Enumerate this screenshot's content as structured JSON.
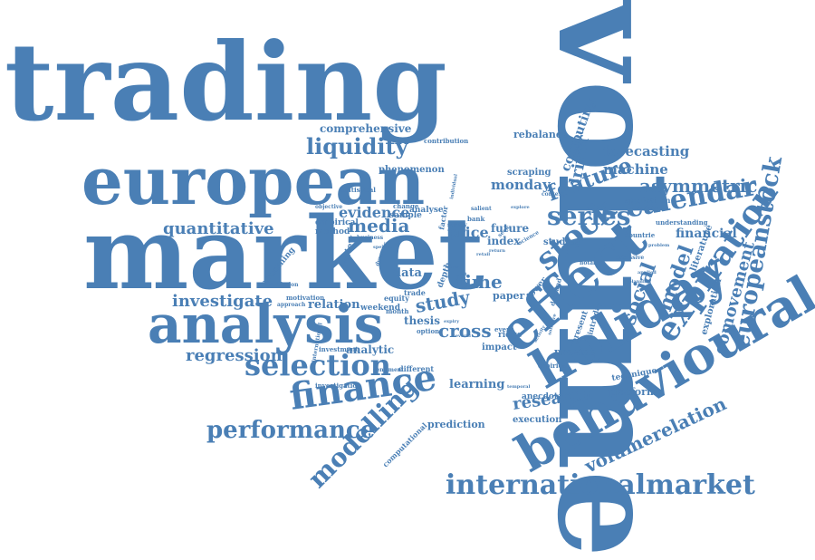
{
  "colors": {
    "word": "#4a7fb5",
    "background": "#ffffff"
  },
  "words": {
    "volume": "volume",
    "trading": "trading",
    "market": "market",
    "european": "european",
    "analysis": "analysis",
    "holiday": "holiday",
    "behavioural": "behavioural",
    "effect": "effect",
    "finance": "finance",
    "selection": "selection",
    "internationalmarket": "internationalmarket",
    "performance": "performance",
    "modelling": "modelling",
    "expiration": "expiration",
    "calendar": "calendar",
    "stock": "stock",
    "series": "series",
    "feature": "feature",
    "europeanstock": "europeanstock",
    "comovement": "comovement",
    "volumerelation": "volumerelation",
    "model": "model",
    "social": "social",
    "asymmetric": "asymmetric",
    "liquidity": "liquidity",
    "quantitative": "quantitative",
    "investigate": "investigate",
    "regression": "regression",
    "research": "research",
    "media": "media",
    "evidence": "evidence",
    "cross": "cross",
    "study": "study",
    "time": "time",
    "price": "price",
    "monday": "monday",
    "forecasting": "forecasting",
    "machine": "machine",
    "financial": "financial",
    "comprehensive": "comprehensive",
    "rebalance": "rebalance",
    "computing": "computing",
    "driver": "driver",
    "relation": "relation",
    "analytic": "analytic",
    "learning": "learning",
    "prediction": "prediction",
    "execution": "execution",
    "platform": "platform",
    "technique": "technique",
    "provide": "provide",
    "literature": "literature",
    "exploration": "exploration",
    "phenomenon": "phenomenon",
    "scraping": "scraping",
    "index": "index",
    "future": "future",
    "data": "data",
    "thesis": "thesis",
    "paper": "paper",
    "ridge": "ridge",
    "impact": "impact",
    "review": "review",
    "method": "method",
    "empirical": "empirical",
    "anecdotal": "anecdotal",
    "studies": "studies",
    "understanding": "understanding",
    "application": "application",
    "examining": "examining",
    "investment": "investment",
    "computational": "computational",
    "investigation": "investigation",
    "weekend": "weekend",
    "equity": "equity",
    "trade": "trade",
    "different": "different",
    "expiries": "expiries",
    "present": "present",
    "intraday": "intraday",
    "lower": "lower",
    "sample": "sample",
    "analyse": "analyse",
    "change": "change",
    "statistical": "statistical",
    "objective": "objective",
    "motivation": "motivation",
    "validation": "validation",
    "approach": "approach",
    "international": "international",
    "sentiment": "sentiment",
    "option": "option",
    "month": "month",
    "event": "event",
    "bank": "bank",
    "contribution": "contribution",
    "context": "context",
    "countrie": "countrie",
    "demand": "demand",
    "notable": "notable",
    "excessive": "excessive",
    "business": "business",
    "dynamic": "dynamic",
    "specific": "specific",
    "depth": "depth",
    "factor": "factor",
    "survey": "survey",
    "salient": "salient",
    "explore": "explore",
    "science": "science",
    "activity": "activity",
    "software": "software",
    "temporal": "temporal",
    "expiry": "expiry",
    "several": "several",
    "retail": "retail",
    "individual": "individual",
    "more": "more",
    "cost": "cost",
    "return": "return",
    "seek": "seek",
    "problem": "problem",
    "planning": "planning",
    "volatility": "volatility",
    "applied": "applied"
  }
}
